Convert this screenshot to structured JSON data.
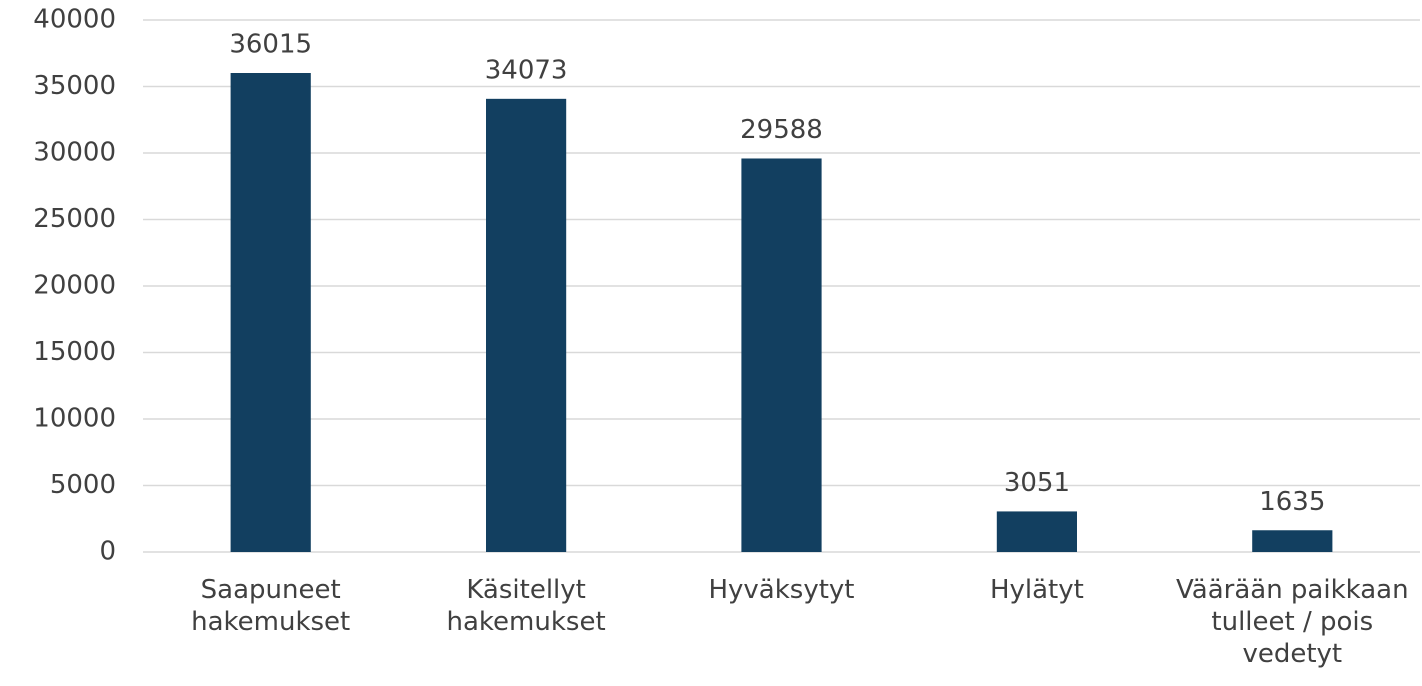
{
  "chart_data": {
    "type": "bar",
    "categories": [
      "Saapuneet hakemukset",
      "Käsitellyt hakemukset",
      "Hyväksytyt",
      "Hylätyt",
      "Väärään paikkaan tulleet / pois vedetyt"
    ],
    "values": [
      36015,
      34073,
      29588,
      3051,
      1635
    ],
    "color": "#123f60",
    "ylim": [
      0,
      40000
    ],
    "yticks": [
      0,
      5000,
      10000,
      15000,
      20000,
      25000,
      30000,
      35000,
      40000
    ],
    "grid": true
  }
}
